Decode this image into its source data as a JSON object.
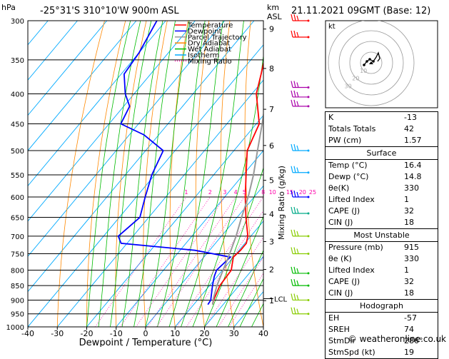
{
  "header": {
    "pressure_unit": "hPa",
    "location": "-25°31'S  310°10'W  900m  ASL",
    "km_unit": "km",
    "asl_label": "ASL",
    "datetime": "21.11.2021  09GMT  (Base: 12)"
  },
  "chart_data": {
    "type": "skew-t",
    "xlabel": "Dewpoint / Temperature (°C)",
    "ylabel": "hPa",
    "right_axis_label": "Mixing Ratio (g/kg)",
    "xlim": [
      -40,
      40
    ],
    "ylim": [
      1000,
      300
    ],
    "x_ticks": [
      "-40",
      "-30",
      "-20",
      "-10",
      "0",
      "10",
      "20",
      "30",
      "40"
    ],
    "pressure_levels": [
      300,
      350,
      400,
      450,
      500,
      550,
      600,
      650,
      700,
      750,
      800,
      850,
      900,
      950,
      1000
    ],
    "pressure_labels": [
      "300",
      "350",
      "400",
      "450",
      "500",
      "550",
      "600",
      "650",
      "700",
      "750",
      "800",
      "850",
      "900",
      "950",
      "1000"
    ],
    "height_ticks": [
      {
        "label": "9",
        "pressure": 310
      },
      {
        "label": "8",
        "pressure": 362
      },
      {
        "label": "7",
        "pressure": 425
      },
      {
        "label": "6",
        "pressure": 490
      },
      {
        "label": "5",
        "pressure": 562
      },
      {
        "label": "4",
        "pressure": 642
      },
      {
        "label": "3",
        "pressure": 715
      },
      {
        "label": "2",
        "pressure": 798
      },
      {
        "label": "1",
        "pressure": 902
      }
    ],
    "lcl": {
      "label": "LCL",
      "pressure": 895
    },
    "mixing_ratio_lines": [
      {
        "label": "1",
        "value": 1
      },
      {
        "label": "2",
        "value": 2
      },
      {
        "label": "3",
        "value": 3
      },
      {
        "label": "4",
        "value": 4
      },
      {
        "label": "5",
        "value": 5
      },
      {
        "label": "8",
        "value": 8
      },
      {
        "label": "10",
        "value": 10
      },
      {
        "label": "15",
        "value": 15
      },
      {
        "label": "20",
        "value": 20
      },
      {
        "label": "25",
        "value": 25
      }
    ],
    "legend": [
      {
        "name": "Temperature",
        "color": "#ff0000",
        "style": "solid"
      },
      {
        "name": "Dewpoint",
        "color": "#0000ff",
        "style": "solid"
      },
      {
        "name": "Parcel Trajectory",
        "color": "#999999",
        "style": "solid"
      },
      {
        "name": "Dry Adiabat",
        "color": "#ff8800",
        "style": "solid"
      },
      {
        "name": "Wet Adiabat",
        "color": "#00bb00",
        "style": "solid"
      },
      {
        "name": "Isotherm",
        "color": "#00aaff",
        "style": "solid"
      },
      {
        "name": "Mixing Ratio",
        "color": "#ff00aa",
        "style": "dotted"
      }
    ],
    "series": [
      {
        "name": "Temperature",
        "color": "#ff0000",
        "points": [
          [
            916,
            16.4
          ],
          [
            900,
            15.5
          ],
          [
            850,
            13.5
          ],
          [
            800,
            13
          ],
          [
            780,
            11.5
          ],
          [
            760,
            10
          ],
          [
            740,
            10.5
          ],
          [
            720,
            10.5
          ],
          [
            700,
            9
          ],
          [
            650,
            3
          ],
          [
            600,
            -3
          ],
          [
            550,
            -9
          ],
          [
            500,
            -15.5
          ],
          [
            450,
            -19
          ],
          [
            400,
            -28.5
          ],
          [
            370,
            -32.5
          ],
          [
            340,
            -37
          ],
          [
            310,
            -42
          ],
          [
            300,
            -44
          ]
        ]
      },
      {
        "name": "Dewpoint",
        "color": "#0000ff",
        "points": [
          [
            916,
            14.8
          ],
          [
            900,
            14.5
          ],
          [
            850,
            11
          ],
          [
            820,
            9
          ],
          [
            800,
            8
          ],
          [
            760,
            9
          ],
          [
            740,
            -5
          ],
          [
            720,
            -32
          ],
          [
            700,
            -35
          ],
          [
            650,
            -33
          ],
          [
            600,
            -37
          ],
          [
            550,
            -41
          ],
          [
            500,
            -44
          ],
          [
            470,
            -55
          ],
          [
            450,
            -66
          ],
          [
            420,
            -68
          ],
          [
            400,
            -73
          ],
          [
            370,
            -79
          ],
          [
            340,
            -80
          ],
          [
            300,
            -83
          ]
        ]
      },
      {
        "name": "Parcel Trajectory",
        "color": "#999999",
        "points": [
          [
            916,
            16.4
          ],
          [
            895,
            15
          ],
          [
            850,
            12.5
          ],
          [
            800,
            10.2
          ],
          [
            750,
            7.8
          ],
          [
            700,
            5
          ],
          [
            650,
            1.5
          ],
          [
            600,
            -2
          ],
          [
            550,
            -6.5
          ],
          [
            500,
            -12
          ],
          [
            450,
            -18
          ],
          [
            400,
            -25
          ],
          [
            350,
            -33
          ],
          [
            300,
            -42
          ]
        ]
      }
    ],
    "wind_barbs": [
      {
        "pressure": 300,
        "color": "#ff0000"
      },
      {
        "pressure": 320,
        "color": "#ff0000"
      },
      {
        "pressure": 390,
        "color": "#aa00aa"
      },
      {
        "pressure": 405,
        "color": "#aa00aa"
      },
      {
        "pressure": 420,
        "color": "#aa00aa"
      },
      {
        "pressure": 500,
        "color": "#00aaff"
      },
      {
        "pressure": 545,
        "color": "#00aaff"
      },
      {
        "pressure": 600,
        "color": "#0000ff"
      },
      {
        "pressure": 640,
        "color": "#00aa88"
      },
      {
        "pressure": 700,
        "color": "#88cc00"
      },
      {
        "pressure": 750,
        "color": "#88cc00"
      },
      {
        "pressure": 810,
        "color": "#00bb00"
      },
      {
        "pressure": 850,
        "color": "#00bb00"
      },
      {
        "pressure": 900,
        "color": "#88cc00"
      },
      {
        "pressure": 950,
        "color": "#88cc00"
      }
    ]
  },
  "hodograph": {
    "unit_label": "kt",
    "ring_labels": [
      "10",
      "20",
      "30"
    ]
  },
  "indices": {
    "rows": [
      {
        "label": "K",
        "value": "-13"
      },
      {
        "label": "Totals Totals",
        "value": "42"
      },
      {
        "label": "PW (cm)",
        "value": "1.57"
      }
    ]
  },
  "surface": {
    "title": "Surface",
    "rows": [
      {
        "label": "Temp (°C)",
        "value": "16.4"
      },
      {
        "label": "Dewp (°C)",
        "value": "14.8"
      },
      {
        "label": "θe(K)",
        "value": "330"
      },
      {
        "label": "Lifted Index",
        "value": "1"
      },
      {
        "label": "CAPE (J)",
        "value": "32"
      },
      {
        "label": "CIN (J)",
        "value": "18"
      }
    ]
  },
  "most_unstable": {
    "title": "Most Unstable",
    "rows": [
      {
        "label": "Pressure (mb)",
        "value": "915"
      },
      {
        "label": "θe (K)",
        "value": "330"
      },
      {
        "label": "Lifted Index",
        "value": "1"
      },
      {
        "label": "CAPE (J)",
        "value": "32"
      },
      {
        "label": "CIN (J)",
        "value": "18"
      }
    ]
  },
  "hodograph_stats": {
    "title": "Hodograph",
    "rows": [
      {
        "label": "EH",
        "value": "-57"
      },
      {
        "label": "SREH",
        "value": "74"
      },
      {
        "label": "StmDir",
        "value": "286°"
      },
      {
        "label": "StmSpd (kt)",
        "value": "19"
      }
    ]
  },
  "footer": {
    "copyright": "© weatheronline.co.uk"
  }
}
